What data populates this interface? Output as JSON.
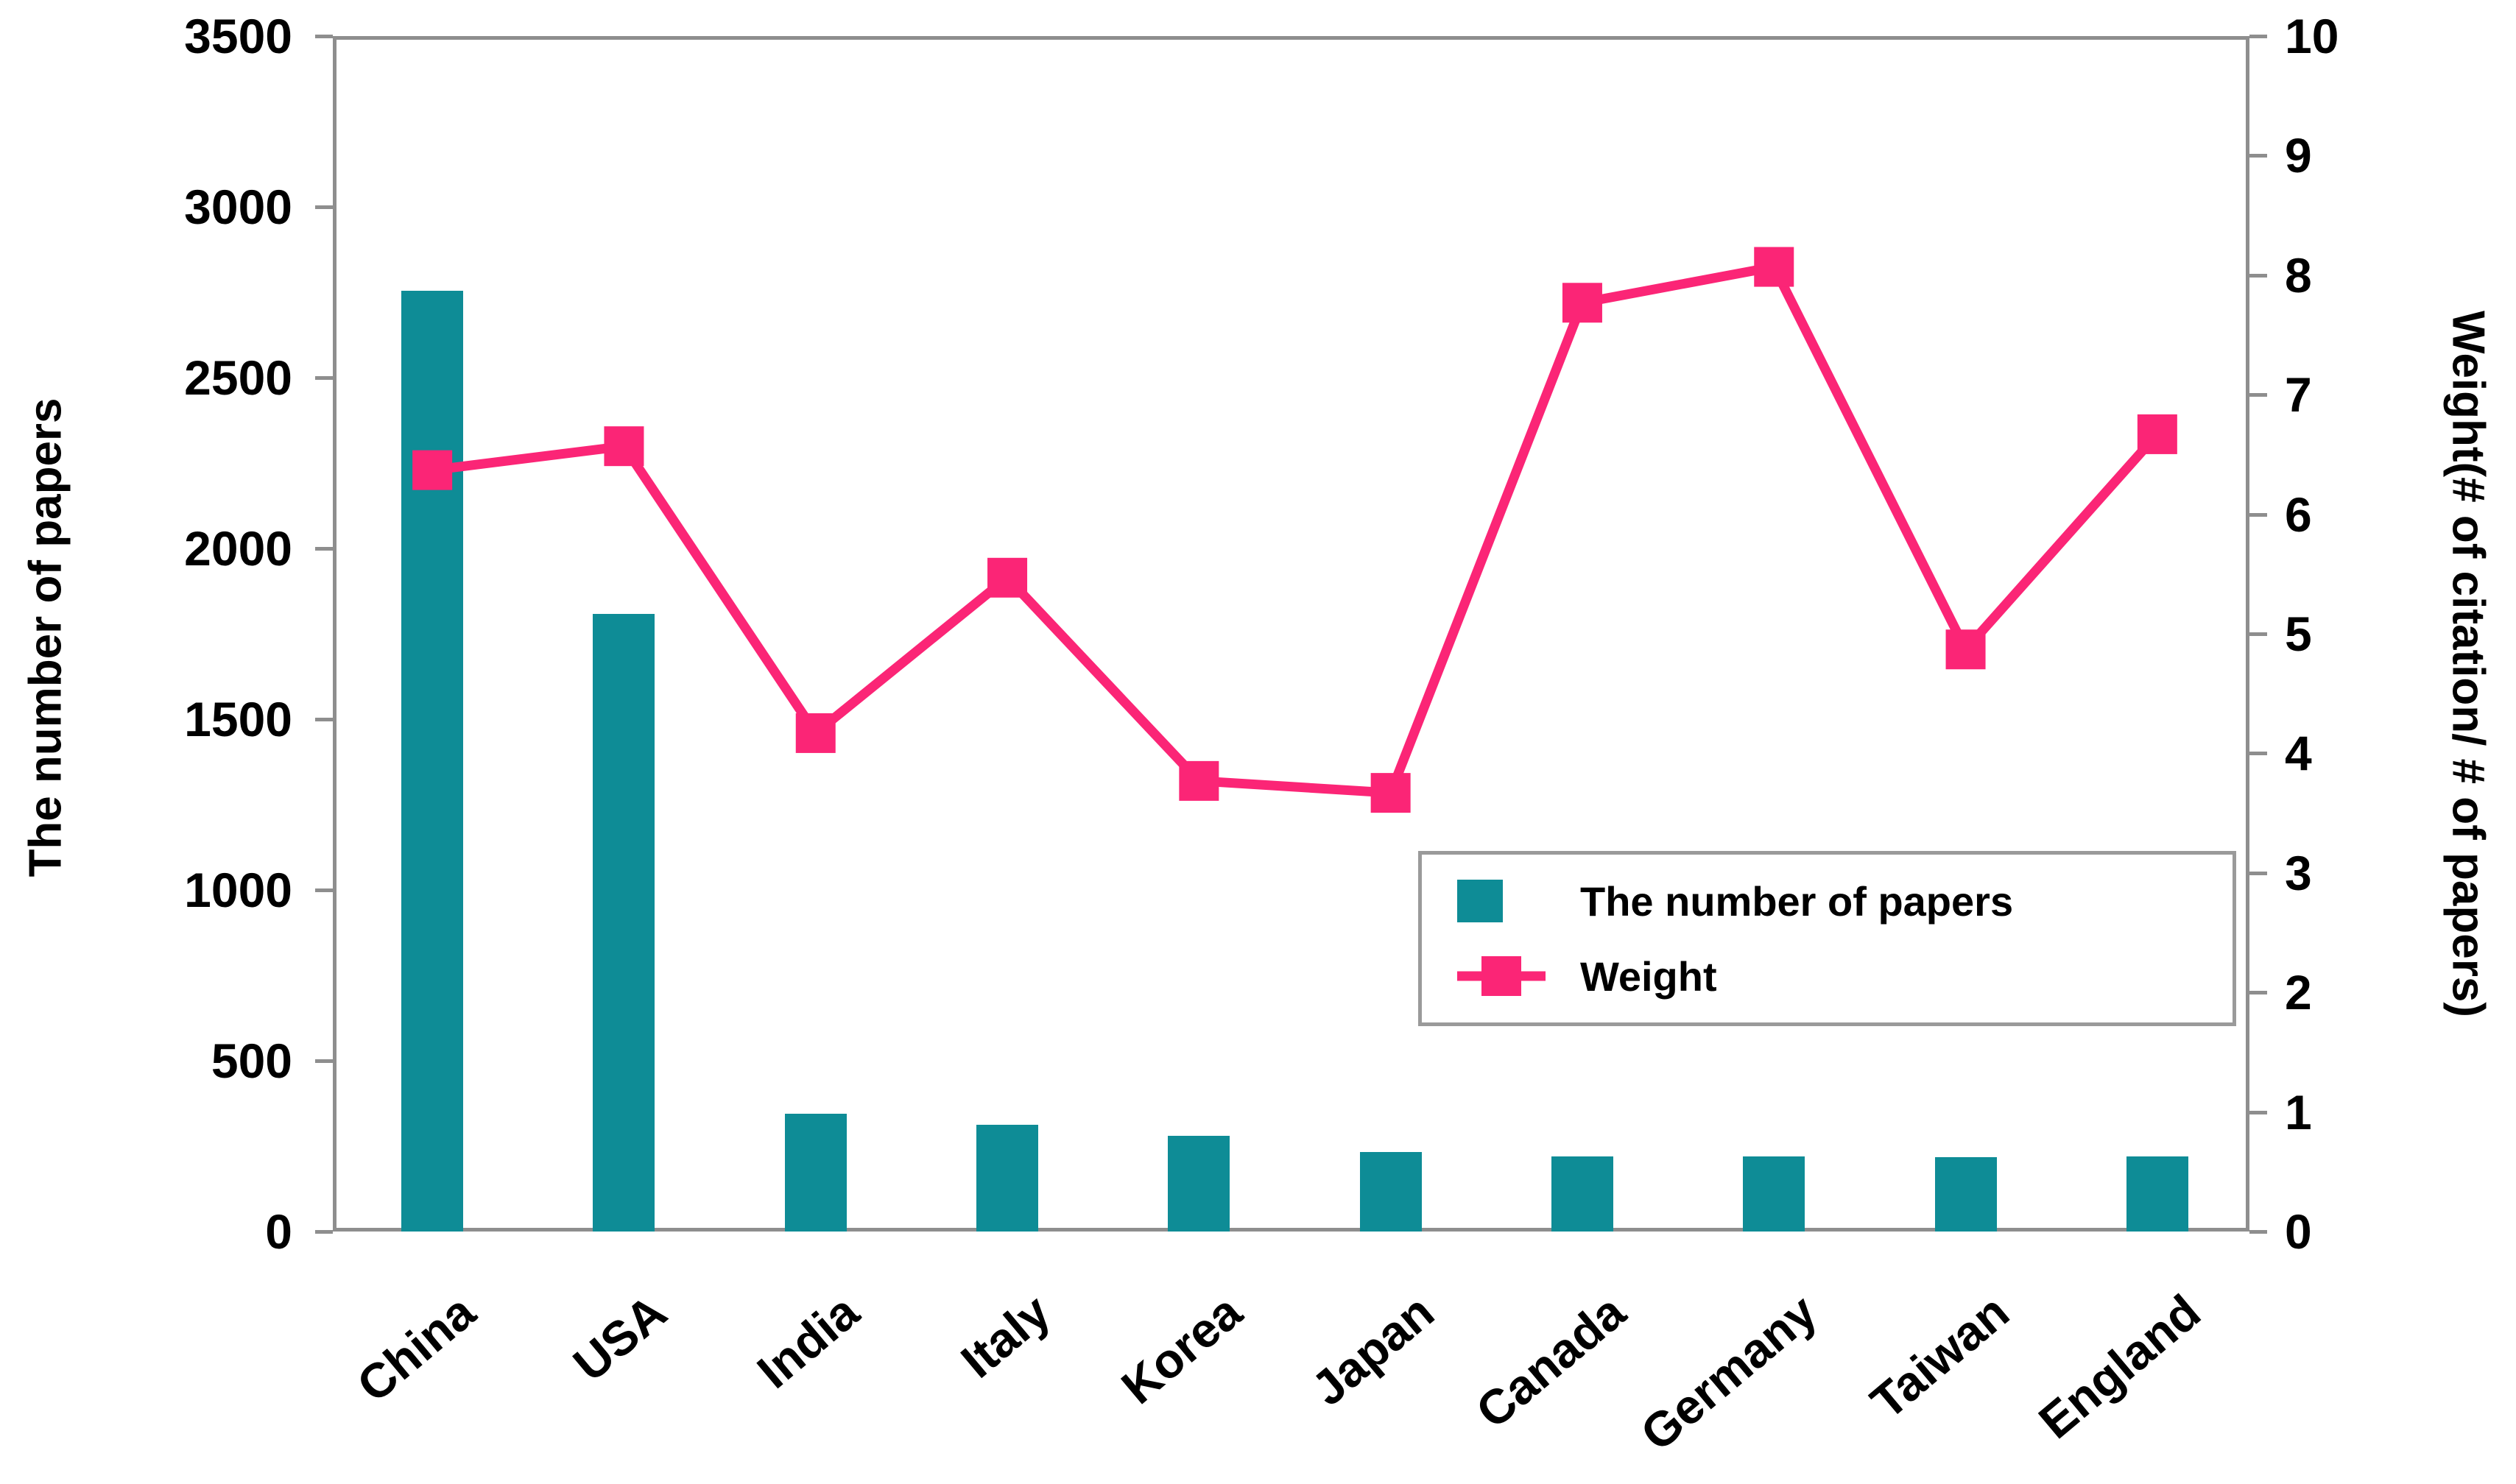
{
  "chart_data": {
    "type": "combo",
    "categories": [
      "China",
      "USA",
      "India",
      "Italy",
      "Korea",
      "Japan",
      "Canada",
      "Germany",
      "Taiwan",
      "England"
    ],
    "series": [
      {
        "name": "The number of papers",
        "type": "bar",
        "axis": "left",
        "color": "#0e8c96",
        "values": [
          2765,
          1820,
          356,
          324,
          291,
          244,
          231,
          230,
          229,
          231
        ]
      },
      {
        "name": "Weight",
        "type": "line",
        "axis": "right",
        "color": "#fb2576",
        "marker": "square",
        "values": [
          6.4,
          6.6,
          4.2,
          5.5,
          3.8,
          3.7,
          7.8,
          8.1,
          4.9,
          6.7
        ]
      }
    ],
    "left_axis": {
      "label": "The number of papers",
      "min": 0,
      "max": 3500,
      "step": 500,
      "tick_labels": [
        "0",
        "500",
        "1000",
        "1500",
        "2000",
        "2500",
        "3000",
        "3500"
      ]
    },
    "right_axis": {
      "label": "Weight(# of citation/ # of papers)",
      "min": 0,
      "max": 10,
      "step": 1,
      "tick_labels": [
        "0",
        "1",
        "2",
        "3",
        "4",
        "5",
        "6",
        "7",
        "8",
        "9",
        "10"
      ]
    },
    "legend": {
      "position": "middle-right",
      "items": [
        "The number of papers",
        "Weight"
      ]
    },
    "grid": false,
    "colors": {
      "bar": "#0e8c96",
      "line": "#fb2576",
      "axis": "#8e8e8e",
      "text": "#000000",
      "background": "#ffffff"
    }
  }
}
